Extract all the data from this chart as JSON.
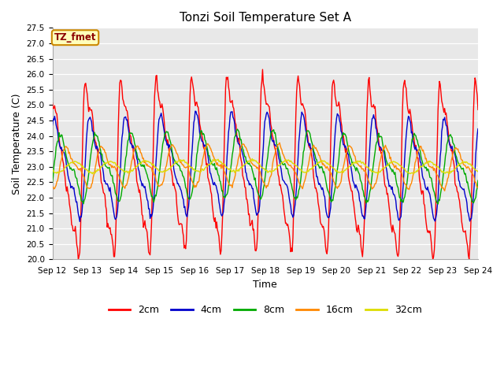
{
  "title": "Tonzi Soil Temperature Set A",
  "xlabel": "Time",
  "ylabel": "Soil Temperature (C)",
  "ylim": [
    20.0,
    27.5
  ],
  "yticks": [
    20.0,
    20.5,
    21.0,
    21.5,
    22.0,
    22.5,
    23.0,
    23.5,
    24.0,
    24.5,
    25.0,
    25.5,
    26.0,
    26.5,
    27.0,
    27.5
  ],
  "colors": {
    "2cm": "#FF0000",
    "4cm": "#0000CC",
    "8cm": "#00AA00",
    "16cm": "#FF8800",
    "32cm": "#DDDD00"
  },
  "annotation_text": "TZ_fmet",
  "annotation_bbox_facecolor": "#FFFFBB",
  "annotation_bbox_edgecolor": "#CC8800",
  "plot_bgcolor": "#E8E8E8",
  "fig_bgcolor": "#FFFFFF",
  "mean_temp": 23.0
}
